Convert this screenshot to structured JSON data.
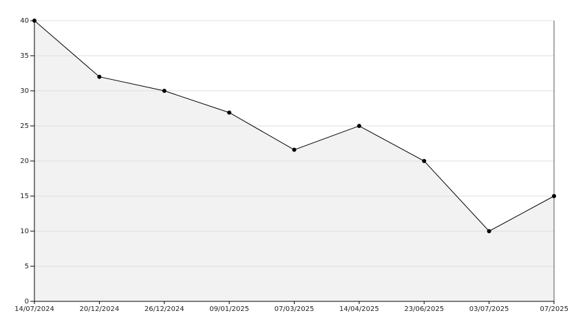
{
  "chart_data": {
    "type": "line",
    "categories": [
      "14/07/2024",
      "20/12/2024",
      "26/12/2024",
      "09/01/2025",
      "07/03/2025",
      "14/04/2025",
      "23/06/2025",
      "03/07/2025",
      "07/2025"
    ],
    "values": [
      40,
      32,
      30,
      26.9,
      21.6,
      25,
      20,
      10,
      15
    ],
    "color": "#000000",
    "fill": "#f2f2f2",
    "ylim": [
      0,
      40
    ],
    "yticks": [
      0,
      5,
      10,
      15,
      20,
      25,
      30,
      35,
      40
    ],
    "grid": true
  }
}
